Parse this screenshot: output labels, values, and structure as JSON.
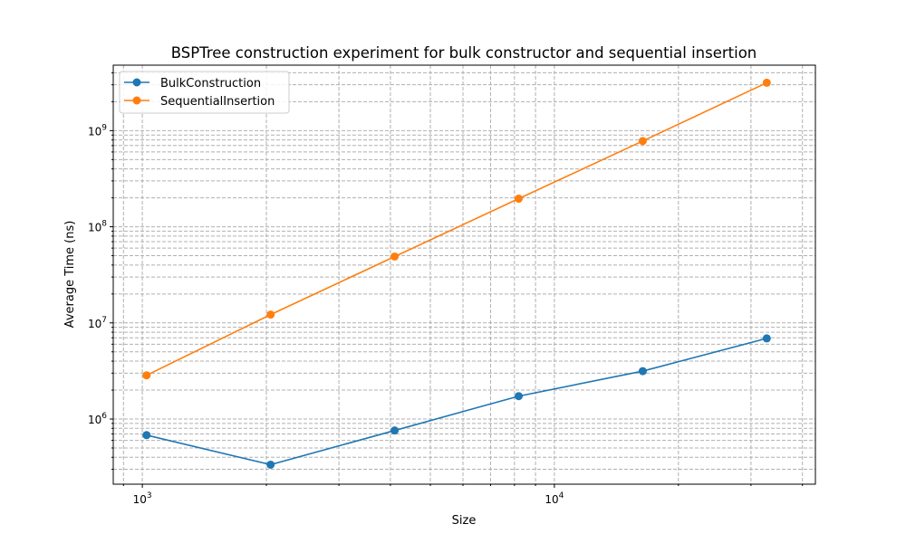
{
  "chart_data": {
    "type": "line",
    "title": "BSPTree construction experiment for bulk constructor and sequential insertion",
    "xlabel": "Size",
    "ylabel": "Average Time (ns)",
    "xscale": "log",
    "yscale": "log",
    "xlim": [
      850,
      43000
    ],
    "ylim": [
      210000,
      4800000000
    ],
    "grid": true,
    "grid_style": "dashed, major and minor",
    "legend_position": "top-left",
    "x": [
      1024,
      2048,
      4096,
      8192,
      16384,
      32768
    ],
    "series": [
      {
        "name": "BulkConstruction",
        "color": "#1f77b4",
        "marker": "circle",
        "values": [
          680000,
          335000,
          760000,
          1730000,
          3150000,
          6900000
        ]
      },
      {
        "name": "SequentialInsertion",
        "color": "#ff7f0e",
        "marker": "circle",
        "values": [
          2850000,
          12200000,
          49000000,
          196000000,
          780000000,
          3150000000
        ]
      }
    ],
    "x_ticks": [
      {
        "value": 1000,
        "base": "10",
        "exp": "3"
      },
      {
        "value": 10000,
        "base": "10",
        "exp": "4"
      }
    ],
    "y_ticks": [
      {
        "value": 1000000,
        "base": "10",
        "exp": "6"
      },
      {
        "value": 10000000,
        "base": "10",
        "exp": "7"
      },
      {
        "value": 100000000,
        "base": "10",
        "exp": "8"
      },
      {
        "value": 1000000000,
        "base": "10",
        "exp": "9"
      }
    ]
  }
}
